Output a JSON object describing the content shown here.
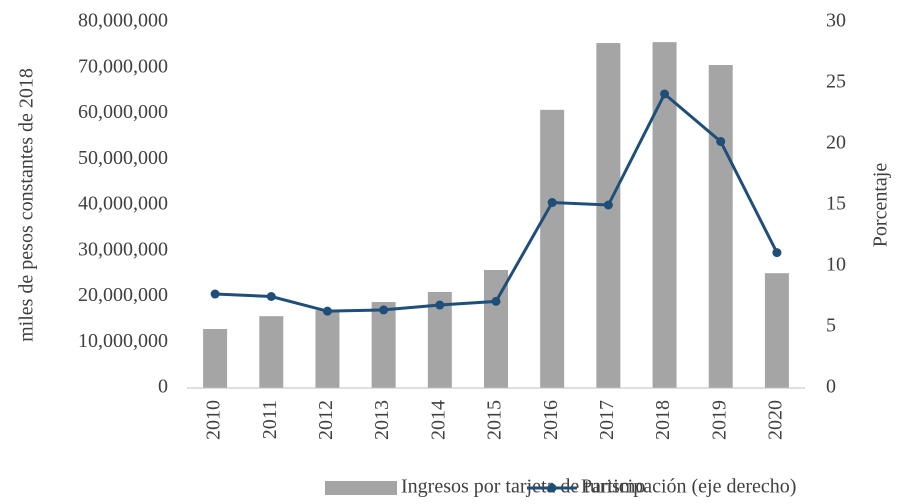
{
  "chart_data": {
    "type": "bar_line",
    "categories": [
      "2010",
      "2011",
      "2012",
      "2013",
      "2014",
      "2015",
      "2016",
      "2017",
      "2018",
      "2019",
      "2020"
    ],
    "y_label": "miles de pesos constantes de 2018",
    "y2_label": "Porcentaje",
    "ylim": [
      0,
      80000000
    ],
    "yticks": [
      0,
      {
        "value": 10000000,
        "label": "10,000,000"
      },
      {
        "value": 20000000,
        "label": "20,000,000"
      },
      {
        "value": 30000000,
        "label": "30,000,000"
      },
      {
        "value": 40000000,
        "label": "40,000,000"
      },
      {
        "value": 50000000,
        "label": "50,000,000"
      },
      {
        "value": 60000000,
        "label": "60,000,000"
      },
      {
        "value": 70000000,
        "label": "70,000,000"
      },
      {
        "value": 80000000,
        "label": "80,000,000"
      }
    ],
    "y2lim": [
      0,
      30
    ],
    "y2ticks": [
      0,
      5,
      10,
      15,
      20,
      25,
      30
    ],
    "series": [
      {
        "name": "Ingresos por tarjeta de turismo",
        "type": "bar",
        "color": "#a5a5a5",
        "values": [
          12900000,
          15700000,
          17000000,
          18800000,
          21000000,
          25800000,
          60800000,
          75400000,
          75600000,
          70600000,
          25100000
        ]
      },
      {
        "name": "Participación (eje derecho)",
        "type": "line",
        "axis": "y2",
        "color": "#1f4e79",
        "values": [
          7.7,
          7.5,
          6.3,
          6.4,
          6.8,
          7.1,
          15.2,
          15.0,
          24.1,
          20.2,
          11.1
        ]
      }
    ]
  }
}
